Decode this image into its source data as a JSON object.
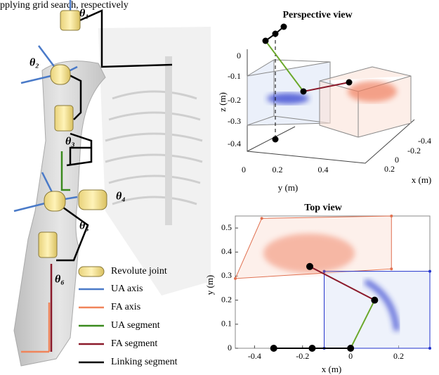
{
  "caption": "pplying grid search, respectively",
  "diagram": {
    "joint_labels": [
      "θ₁",
      "θ₂",
      "θ₃",
      "θ₄",
      "θ₅",
      "θ₆"
    ],
    "legend": [
      "Revolute joint",
      "UA axis",
      "FA axis",
      "UA segment",
      "FA segment",
      "Linking segment"
    ]
  },
  "perspective_view": {
    "title": "Perspective view",
    "xlabel": "x (m)",
    "ylabel": "y (m)",
    "zlabel": "z (m)",
    "xticks": [
      -0.4,
      -0.2,
      0,
      0.2
    ],
    "yticks": [
      0,
      0.2,
      0.4
    ],
    "zticks": [
      0,
      -0.1,
      -0.2,
      -0.3,
      -0.4
    ]
  },
  "top_view": {
    "title": "Top view",
    "xlabel": "x (m)",
    "ylabel": "y (m)",
    "xlim": [
      -0.48,
      0.33
    ],
    "ylim": [
      0,
      0.55
    ],
    "xticks": [
      -0.4,
      -0.2,
      0,
      0.2
    ],
    "yticks": [
      0,
      0.1,
      0.2,
      0.3,
      0.4,
      0.5
    ],
    "shoulder_chain": {
      "x": [
        -0.32,
        -0.16,
        0
      ],
      "y": [
        0,
        0,
        0
      ]
    },
    "elbow": {
      "x": 0.1,
      "y": 0.2
    },
    "hand": {
      "x": -0.17,
      "y": 0.34
    },
    "ua_box": {
      "x": [
        -0.11,
        0.33,
        0.33,
        -0.11
      ],
      "y": [
        0,
        0,
        0.32,
        0.32
      ]
    },
    "fa_box": {
      "x": [
        -0.48,
        -0.37,
        0.17,
        0.17
      ],
      "y": [
        0.29,
        0.54,
        0.55,
        0.33
      ]
    }
  }
}
